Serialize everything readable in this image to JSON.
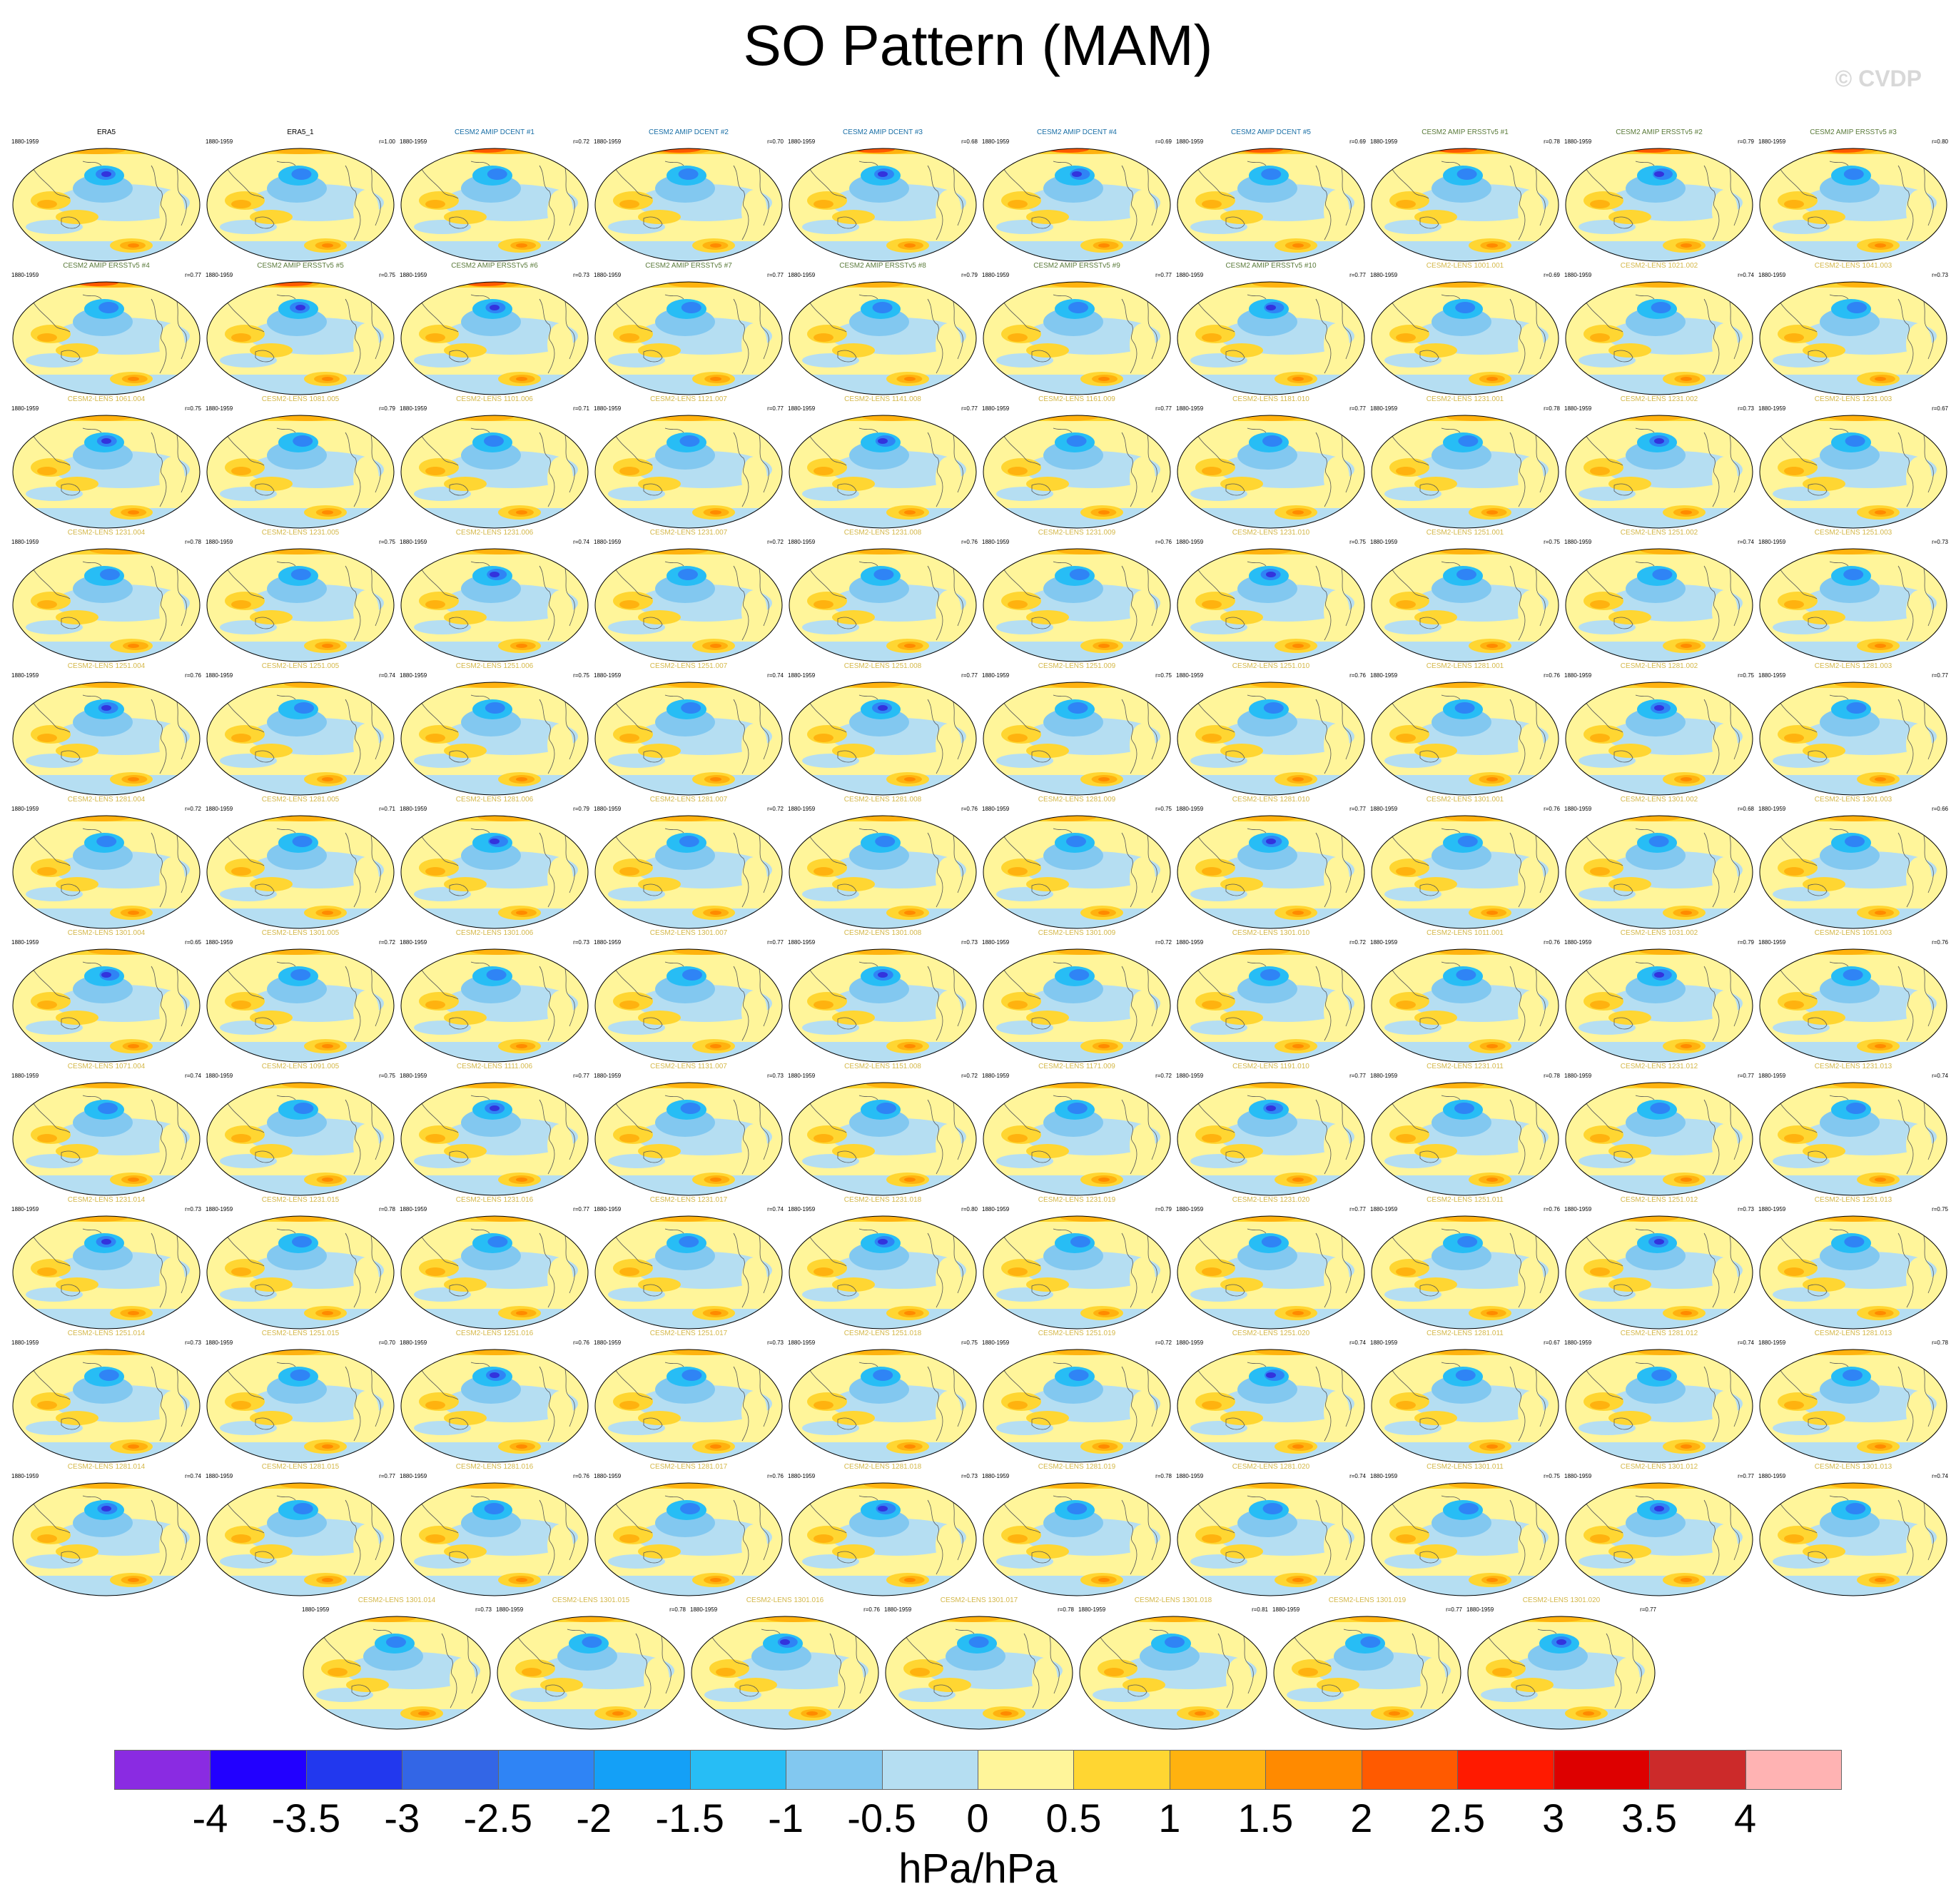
{
  "title": "SO Pattern (MAM)",
  "watermark": "© CVDP",
  "units": "hPa/hPa",
  "colorbar": {
    "colors": [
      "#8a2be2",
      "#2200ff",
      "#2238ee",
      "#3366e6",
      "#2f84f5",
      "#14a0f7",
      "#27bdf5",
      "#82c8f0",
      "#b5def2",
      "#fff59a",
      "#ffd632",
      "#ffb20f",
      "#ff8a00",
      "#ff5a00",
      "#ff1a00",
      "#dd0000",
      "#cc2a2a",
      "#ffb3b3"
    ],
    "labels": [
      "-4",
      "-3.5",
      "-3",
      "-2.5",
      "-2",
      "-1.5",
      "-1",
      "-0.5",
      "0",
      "0.5",
      "1",
      "1.5",
      "2",
      "2.5",
      "3",
      "3.5",
      "4"
    ]
  },
  "panels": [
    {
      "title": "ERA5",
      "period": "1880-1959",
      "corr": "",
      "color": "#000000"
    },
    {
      "title": "ERA5_1",
      "period": "1880-1959",
      "corr": "r=1.00",
      "color": "#000000"
    },
    {
      "title": "CESM2 AMIP DCENT #1",
      "period": "1880-1959",
      "corr": "r=0.72",
      "color": "#1a6fa6"
    },
    {
      "title": "CESM2 AMIP DCENT #2",
      "period": "1880-1959",
      "corr": "r=0.70",
      "color": "#1a6fa6"
    },
    {
      "title": "CESM2 AMIP DCENT #3",
      "period": "1880-1959",
      "corr": "r=0.68",
      "color": "#1a6fa6"
    },
    {
      "title": "CESM2 AMIP DCENT #4",
      "period": "1880-1959",
      "corr": "r=0.69",
      "color": "#1a6fa6"
    },
    {
      "title": "CESM2 AMIP DCENT #5",
      "period": "1880-1959",
      "corr": "r=0.69",
      "color": "#1a6fa6"
    },
    {
      "title": "CESM2 AMIP ERSSTv5 #1",
      "period": "1880-1959",
      "corr": "r=0.78",
      "color": "#5a7a3a"
    },
    {
      "title": "CESM2 AMIP ERSSTv5 #2",
      "period": "1880-1959",
      "corr": "r=0.79",
      "color": "#5a7a3a"
    },
    {
      "title": "CESM2 AMIP ERSSTv5 #3",
      "period": "1880-1959",
      "corr": "r=0.80",
      "color": "#5a7a3a"
    },
    {
      "title": "CESM2 AMIP ERSSTv5 #4",
      "period": "1880-1959",
      "corr": "r=0.77",
      "color": "#5a7a3a"
    },
    {
      "title": "CESM2 AMIP ERSSTv5 #5",
      "period": "1880-1959",
      "corr": "r=0.75",
      "color": "#5a7a3a"
    },
    {
      "title": "CESM2 AMIP ERSSTv5 #6",
      "period": "1880-1959",
      "corr": "r=0.73",
      "color": "#5a7a3a"
    },
    {
      "title": "CESM2 AMIP ERSSTv5 #7",
      "period": "1880-1959",
      "corr": "r=0.77",
      "color": "#5a7a3a"
    },
    {
      "title": "CESM2 AMIP ERSSTv5 #8",
      "period": "1880-1959",
      "corr": "r=0.79",
      "color": "#5a7a3a"
    },
    {
      "title": "CESM2 AMIP ERSSTv5 #9",
      "period": "1880-1959",
      "corr": "r=0.77",
      "color": "#5a7a3a"
    },
    {
      "title": "CESM2 AMIP ERSSTv5 #10",
      "period": "1880-1959",
      "corr": "r=0.77",
      "color": "#5a7a3a"
    },
    {
      "title": "CESM2-LENS 1001.001",
      "period": "1880-1959",
      "corr": "r=0.69",
      "color": "#d4b84a"
    },
    {
      "title": "CESM2-LENS 1021.002",
      "period": "1880-1959",
      "corr": "r=0.74",
      "color": "#d4b84a"
    },
    {
      "title": "CESM2-LENS 1041.003",
      "period": "1880-1959",
      "corr": "r=0.73",
      "color": "#d4b84a"
    },
    {
      "title": "CESM2-LENS 1061.004",
      "period": "1880-1959",
      "corr": "r=0.75",
      "color": "#d4b84a"
    },
    {
      "title": "CESM2-LENS 1081.005",
      "period": "1880-1959",
      "corr": "r=0.79",
      "color": "#d4b84a"
    },
    {
      "title": "CESM2-LENS 1101.006",
      "period": "1880-1959",
      "corr": "r=0.71",
      "color": "#d4b84a"
    },
    {
      "title": "CESM2-LENS 1121.007",
      "period": "1880-1959",
      "corr": "r=0.77",
      "color": "#d4b84a"
    },
    {
      "title": "CESM2-LENS 1141.008",
      "period": "1880-1959",
      "corr": "r=0.77",
      "color": "#d4b84a"
    },
    {
      "title": "CESM2-LENS 1161.009",
      "period": "1880-1959",
      "corr": "r=0.77",
      "color": "#d4b84a"
    },
    {
      "title": "CESM2-LENS 1181.010",
      "period": "1880-1959",
      "corr": "r=0.77",
      "color": "#d4b84a"
    },
    {
      "title": "CESM2-LENS 1231.001",
      "period": "1880-1959",
      "corr": "r=0.78",
      "color": "#d4b84a"
    },
    {
      "title": "CESM2-LENS 1231.002",
      "period": "1880-1959",
      "corr": "r=0.73",
      "color": "#d4b84a"
    },
    {
      "title": "CESM2-LENS 1231.003",
      "period": "1880-1959",
      "corr": "r=0.67",
      "color": "#d4b84a"
    },
    {
      "title": "CESM2-LENS 1231.004",
      "period": "1880-1959",
      "corr": "r=0.78",
      "color": "#d4b84a"
    },
    {
      "title": "CESM2-LENS 1231.005",
      "period": "1880-1959",
      "corr": "r=0.75",
      "color": "#d4b84a"
    },
    {
      "title": "CESM2-LENS 1231.006",
      "period": "1880-1959",
      "corr": "r=0.74",
      "color": "#d4b84a"
    },
    {
      "title": "CESM2-LENS 1231.007",
      "period": "1880-1959",
      "corr": "r=0.72",
      "color": "#d4b84a"
    },
    {
      "title": "CESM2-LENS 1231.008",
      "period": "1880-1959",
      "corr": "r=0.76",
      "color": "#d4b84a"
    },
    {
      "title": "CESM2-LENS 1231.009",
      "period": "1880-1959",
      "corr": "r=0.76",
      "color": "#d4b84a"
    },
    {
      "title": "CESM2-LENS 1231.010",
      "period": "1880-1959",
      "corr": "r=0.75",
      "color": "#d4b84a"
    },
    {
      "title": "CESM2-LENS 1251.001",
      "period": "1880-1959",
      "corr": "r=0.75",
      "color": "#d4b84a"
    },
    {
      "title": "CESM2-LENS 1251.002",
      "period": "1880-1959",
      "corr": "r=0.74",
      "color": "#d4b84a"
    },
    {
      "title": "CESM2-LENS 1251.003",
      "period": "1880-1959",
      "corr": "r=0.73",
      "color": "#d4b84a"
    },
    {
      "title": "CESM2-LENS 1251.004",
      "period": "1880-1959",
      "corr": "r=0.76",
      "color": "#d4b84a"
    },
    {
      "title": "CESM2-LENS 1251.005",
      "period": "1880-1959",
      "corr": "r=0.74",
      "color": "#d4b84a"
    },
    {
      "title": "CESM2-LENS 1251.006",
      "period": "1880-1959",
      "corr": "r=0.75",
      "color": "#d4b84a"
    },
    {
      "title": "CESM2-LENS 1251.007",
      "period": "1880-1959",
      "corr": "r=0.74",
      "color": "#d4b84a"
    },
    {
      "title": "CESM2-LENS 1251.008",
      "period": "1880-1959",
      "corr": "r=0.77",
      "color": "#d4b84a"
    },
    {
      "title": "CESM2-LENS 1251.009",
      "period": "1880-1959",
      "corr": "r=0.75",
      "color": "#d4b84a"
    },
    {
      "title": "CESM2-LENS 1251.010",
      "period": "1880-1959",
      "corr": "r=0.76",
      "color": "#d4b84a"
    },
    {
      "title": "CESM2-LENS 1281.001",
      "period": "1880-1959",
      "corr": "r=0.76",
      "color": "#d4b84a"
    },
    {
      "title": "CESM2-LENS 1281.002",
      "period": "1880-1959",
      "corr": "r=0.75",
      "color": "#d4b84a"
    },
    {
      "title": "CESM2-LENS 1281.003",
      "period": "1880-1959",
      "corr": "r=0.77",
      "color": "#d4b84a"
    },
    {
      "title": "CESM2-LENS 1281.004",
      "period": "1880-1959",
      "corr": "r=0.72",
      "color": "#d4b84a"
    },
    {
      "title": "CESM2-LENS 1281.005",
      "period": "1880-1959",
      "corr": "r=0.71",
      "color": "#d4b84a"
    },
    {
      "title": "CESM2-LENS 1281.006",
      "period": "1880-1959",
      "corr": "r=0.79",
      "color": "#d4b84a"
    },
    {
      "title": "CESM2-LENS 1281.007",
      "period": "1880-1959",
      "corr": "r=0.72",
      "color": "#d4b84a"
    },
    {
      "title": "CESM2-LENS 1281.008",
      "period": "1880-1959",
      "corr": "r=0.76",
      "color": "#d4b84a"
    },
    {
      "title": "CESM2-LENS 1281.009",
      "period": "1880-1959",
      "corr": "r=0.75",
      "color": "#d4b84a"
    },
    {
      "title": "CESM2-LENS 1281.010",
      "period": "1880-1959",
      "corr": "r=0.77",
      "color": "#d4b84a"
    },
    {
      "title": "CESM2-LENS 1301.001",
      "period": "1880-1959",
      "corr": "r=0.76",
      "color": "#d4b84a"
    },
    {
      "title": "CESM2-LENS 1301.002",
      "period": "1880-1959",
      "corr": "r=0.68",
      "color": "#d4b84a"
    },
    {
      "title": "CESM2-LENS 1301.003",
      "period": "1880-1959",
      "corr": "r=0.66",
      "color": "#d4b84a"
    },
    {
      "title": "CESM2-LENS 1301.004",
      "period": "1880-1959",
      "corr": "r=0.65",
      "color": "#d4b84a"
    },
    {
      "title": "CESM2-LENS 1301.005",
      "period": "1880-1959",
      "corr": "r=0.72",
      "color": "#d4b84a"
    },
    {
      "title": "CESM2-LENS 1301.006",
      "period": "1880-1959",
      "corr": "r=0.73",
      "color": "#d4b84a"
    },
    {
      "title": "CESM2-LENS 1301.007",
      "period": "1880-1959",
      "corr": "r=0.77",
      "color": "#d4b84a"
    },
    {
      "title": "CESM2-LENS 1301.008",
      "period": "1880-1959",
      "corr": "r=0.73",
      "color": "#d4b84a"
    },
    {
      "title": "CESM2-LENS 1301.009",
      "period": "1880-1959",
      "corr": "r=0.72",
      "color": "#d4b84a"
    },
    {
      "title": "CESM2-LENS 1301.010",
      "period": "1880-1959",
      "corr": "r=0.72",
      "color": "#d4b84a"
    },
    {
      "title": "CESM2-LENS 1011.001",
      "period": "1880-1959",
      "corr": "r=0.76",
      "color": "#d4b84a"
    },
    {
      "title": "CESM2-LENS 1031.002",
      "period": "1880-1959",
      "corr": "r=0.79",
      "color": "#d4b84a"
    },
    {
      "title": "CESM2-LENS 1051.003",
      "period": "1880-1959",
      "corr": "r=0.76",
      "color": "#d4b84a"
    },
    {
      "title": "CESM2-LENS 1071.004",
      "period": "1880-1959",
      "corr": "r=0.74",
      "color": "#d4b84a"
    },
    {
      "title": "CESM2-LENS 1091.005",
      "period": "1880-1959",
      "corr": "r=0.75",
      "color": "#d4b84a"
    },
    {
      "title": "CESM2-LENS 1111.006",
      "period": "1880-1959",
      "corr": "r=0.77",
      "color": "#d4b84a"
    },
    {
      "title": "CESM2-LENS 1131.007",
      "period": "1880-1959",
      "corr": "r=0.73",
      "color": "#d4b84a"
    },
    {
      "title": "CESM2-LENS 1151.008",
      "period": "1880-1959",
      "corr": "r=0.72",
      "color": "#d4b84a"
    },
    {
      "title": "CESM2-LENS 1171.009",
      "period": "1880-1959",
      "corr": "r=0.72",
      "color": "#d4b84a"
    },
    {
      "title": "CESM2-LENS 1191.010",
      "period": "1880-1959",
      "corr": "r=0.77",
      "color": "#d4b84a"
    },
    {
      "title": "CESM2-LENS 1231.011",
      "period": "1880-1959",
      "corr": "r=0.78",
      "color": "#d4b84a"
    },
    {
      "title": "CESM2-LENS 1231.012",
      "period": "1880-1959",
      "corr": "r=0.77",
      "color": "#d4b84a"
    },
    {
      "title": "CESM2-LENS 1231.013",
      "period": "1880-1959",
      "corr": "r=0.74",
      "color": "#d4b84a"
    },
    {
      "title": "CESM2-LENS 1231.014",
      "period": "1880-1959",
      "corr": "r=0.73",
      "color": "#d4b84a"
    },
    {
      "title": "CESM2-LENS 1231.015",
      "period": "1880-1959",
      "corr": "r=0.78",
      "color": "#d4b84a"
    },
    {
      "title": "CESM2-LENS 1231.016",
      "period": "1880-1959",
      "corr": "r=0.77",
      "color": "#d4b84a"
    },
    {
      "title": "CESM2-LENS 1231.017",
      "period": "1880-1959",
      "corr": "r=0.74",
      "color": "#d4b84a"
    },
    {
      "title": "CESM2-LENS 1231.018",
      "period": "1880-1959",
      "corr": "r=0.80",
      "color": "#d4b84a"
    },
    {
      "title": "CESM2-LENS 1231.019",
      "period": "1880-1959",
      "corr": "r=0.79",
      "color": "#d4b84a"
    },
    {
      "title": "CESM2-LENS 1231.020",
      "period": "1880-1959",
      "corr": "r=0.77",
      "color": "#d4b84a"
    },
    {
      "title": "CESM2-LENS 1251.011",
      "period": "1880-1959",
      "corr": "r=0.76",
      "color": "#d4b84a"
    },
    {
      "title": "CESM2-LENS 1251.012",
      "period": "1880-1959",
      "corr": "r=0.73",
      "color": "#d4b84a"
    },
    {
      "title": "CESM2-LENS 1251.013",
      "period": "1880-1959",
      "corr": "r=0.75",
      "color": "#d4b84a"
    },
    {
      "title": "CESM2-LENS 1251.014",
      "period": "1880-1959",
      "corr": "r=0.73",
      "color": "#d4b84a"
    },
    {
      "title": "CESM2-LENS 1251.015",
      "period": "1880-1959",
      "corr": "r=0.70",
      "color": "#d4b84a"
    },
    {
      "title": "CESM2-LENS 1251.016",
      "period": "1880-1959",
      "corr": "r=0.76",
      "color": "#d4b84a"
    },
    {
      "title": "CESM2-LENS 1251.017",
      "period": "1880-1959",
      "corr": "r=0.73",
      "color": "#d4b84a"
    },
    {
      "title": "CESM2-LENS 1251.018",
      "period": "1880-1959",
      "corr": "r=0.75",
      "color": "#d4b84a"
    },
    {
      "title": "CESM2-LENS 1251.019",
      "period": "1880-1959",
      "corr": "r=0.72",
      "color": "#d4b84a"
    },
    {
      "title": "CESM2-LENS 1251.020",
      "period": "1880-1959",
      "corr": "r=0.74",
      "color": "#d4b84a"
    },
    {
      "title": "CESM2-LENS 1281.011",
      "period": "1880-1959",
      "corr": "r=0.67",
      "color": "#d4b84a"
    },
    {
      "title": "CESM2-LENS 1281.012",
      "period": "1880-1959",
      "corr": "r=0.74",
      "color": "#d4b84a"
    },
    {
      "title": "CESM2-LENS 1281.013",
      "period": "1880-1959",
      "corr": "r=0.78",
      "color": "#d4b84a"
    },
    {
      "title": "CESM2-LENS 1281.014",
      "period": "1880-1959",
      "corr": "r=0.74",
      "color": "#d4b84a"
    },
    {
      "title": "CESM2-LENS 1281.015",
      "period": "1880-1959",
      "corr": "r=0.77",
      "color": "#d4b84a"
    },
    {
      "title": "CESM2-LENS 1281.016",
      "period": "1880-1959",
      "corr": "r=0.76",
      "color": "#d4b84a"
    },
    {
      "title": "CESM2-LENS 1281.017",
      "period": "1880-1959",
      "corr": "r=0.76",
      "color": "#d4b84a"
    },
    {
      "title": "CESM2-LENS 1281.018",
      "period": "1880-1959",
      "corr": "r=0.73",
      "color": "#d4b84a"
    },
    {
      "title": "CESM2-LENS 1281.019",
      "period": "1880-1959",
      "corr": "r=0.78",
      "color": "#d4b84a"
    },
    {
      "title": "CESM2-LENS 1281.020",
      "period": "1880-1959",
      "corr": "r=0.74",
      "color": "#d4b84a"
    },
    {
      "title": "CESM2-LENS 1301.011",
      "period": "1880-1959",
      "corr": "r=0.75",
      "color": "#d4b84a"
    },
    {
      "title": "CESM2-LENS 1301.012",
      "period": "1880-1959",
      "corr": "r=0.77",
      "color": "#d4b84a"
    },
    {
      "title": "CESM2-LENS 1301.013",
      "period": "1880-1959",
      "corr": "r=0.74",
      "color": "#d4b84a"
    },
    {
      "title": "CESM2-LENS 1301.014",
      "period": "1880-1959",
      "corr": "r=0.73",
      "color": "#d4b84a"
    },
    {
      "title": "CESM2-LENS 1301.015",
      "period": "1880-1959",
      "corr": "r=0.78",
      "color": "#d4b84a"
    },
    {
      "title": "CESM2-LENS 1301.016",
      "period": "1880-1959",
      "corr": "r=0.76",
      "color": "#d4b84a"
    },
    {
      "title": "CESM2-LENS 1301.017",
      "period": "1880-1959",
      "corr": "r=0.78",
      "color": "#d4b84a"
    },
    {
      "title": "CESM2-LENS 1301.018",
      "period": "1880-1959",
      "corr": "r=0.81",
      "color": "#d4b84a"
    },
    {
      "title": "CESM2-LENS 1301.019",
      "period": "1880-1959",
      "corr": "r=0.77",
      "color": "#d4b84a"
    },
    {
      "title": "CESM2-LENS 1301.020",
      "period": "1880-1959",
      "corr": "r=0.77",
      "color": "#d4b84a"
    }
  ]
}
